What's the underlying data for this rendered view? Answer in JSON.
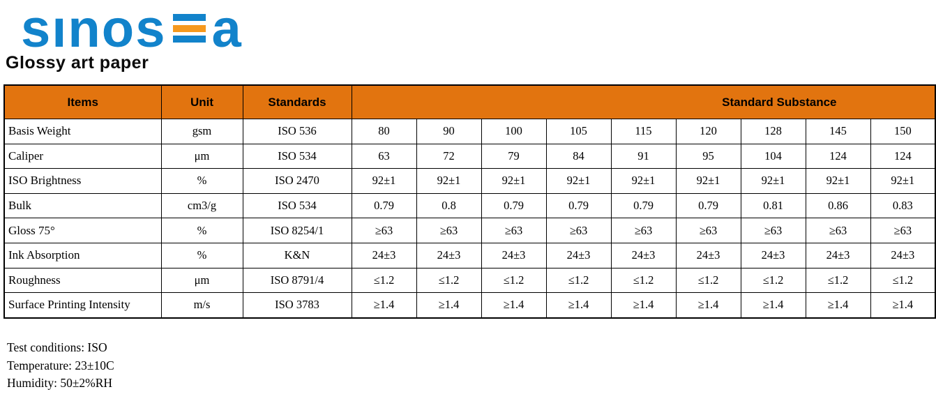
{
  "logo": {
    "word_part1": "sınos",
    "word_part2": "a",
    "brand": "SINOSEA",
    "blue": "#1283CB",
    "orange": "#F6991E"
  },
  "title": "Glossy art paper",
  "table": {
    "header_bg": "#E2740F",
    "columns": [
      "Items",
      "Unit",
      "Standards"
    ],
    "merged_header": "Standard Substance",
    "rows": [
      {
        "item": "Basis Weight",
        "unit": "gsm",
        "standard": "ISO 536",
        "values": [
          "80",
          "90",
          "100",
          "105",
          "115",
          "120",
          "128",
          "145",
          "150"
        ]
      },
      {
        "item": "Caliper",
        "unit": "μm",
        "standard": "ISO 534",
        "values": [
          "63",
          "72",
          "79",
          "84",
          "91",
          "95",
          "104",
          "124",
          "124"
        ]
      },
      {
        "item": "ISO Brightness",
        "unit": "%",
        "standard": "ISO 2470",
        "values": [
          "92±1",
          "92±1",
          "92±1",
          "92±1",
          "92±1",
          "92±1",
          "92±1",
          "92±1",
          "92±1"
        ]
      },
      {
        "item": "Bulk",
        "unit": "cm3/g",
        "standard": "ISO 534",
        "values": [
          "0.79",
          "0.8",
          "0.79",
          "0.79",
          "0.79",
          "0.79",
          "0.81",
          "0.86",
          "0.83"
        ]
      },
      {
        "item": "Gloss 75°",
        "unit": "%",
        "standard": "ISO 8254/1",
        "values": [
          "≥63",
          "≥63",
          "≥63",
          "≥63",
          "≥63",
          "≥63",
          "≥63",
          "≥63",
          "≥63"
        ]
      },
      {
        "item": "Ink Absorption",
        "unit": "%",
        "standard": "K&N",
        "values": [
          "24±3",
          "24±3",
          "24±3",
          "24±3",
          "24±3",
          "24±3",
          "24±3",
          "24±3",
          "24±3"
        ]
      },
      {
        "item": "Roughness",
        "unit": "μm",
        "standard": "ISO 8791/4",
        "values": [
          "≤1.2",
          "≤1.2",
          "≤1.2",
          "≤1.2",
          "≤1.2",
          "≤1.2",
          "≤1.2",
          "≤1.2",
          "≤1.2"
        ]
      },
      {
        "item": "Surface Printing Intensity",
        "unit": "m/s",
        "standard": "ISO 3783",
        "values": [
          "≥1.4",
          "≥1.4",
          "≥1.4",
          "≥1.4",
          "≥1.4",
          "≥1.4",
          "≥1.4",
          "≥1.4",
          "≥1.4"
        ]
      }
    ]
  },
  "footer": {
    "lines": [
      "Test conditions: ISO",
      "Temperature: 23±10C",
      "Humidity: 50±2%RH"
    ]
  }
}
